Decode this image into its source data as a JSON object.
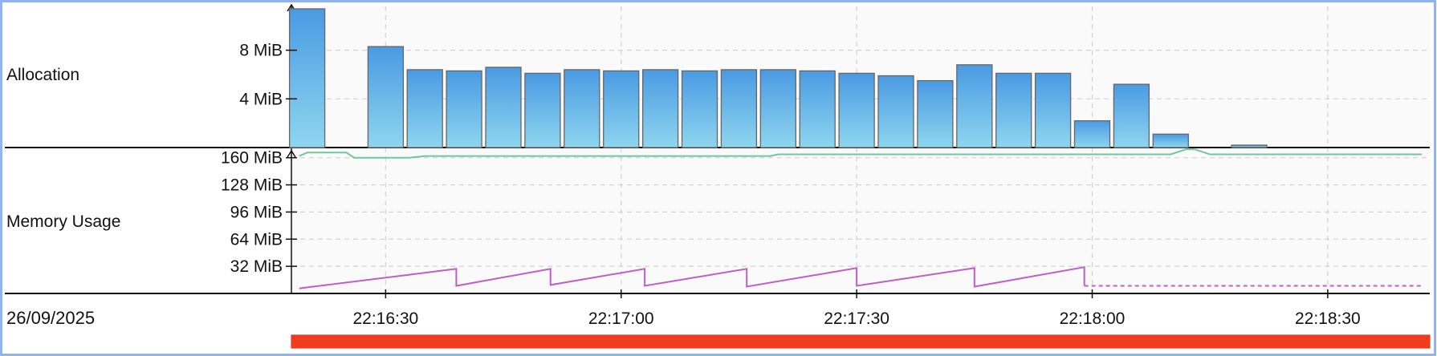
{
  "labels": {
    "allocation": "Allocation",
    "memory_usage": "Memory Usage",
    "date": "26/09/2025"
  },
  "colors": {
    "border": "#8fb4f0",
    "grid": "#d2d2d2",
    "bar_top": "#4a9ae3",
    "bar_bottom": "#8ed6ef",
    "bar_stroke": "#666666",
    "committed_line": "#6fc79b",
    "used_line": "#c05dc8",
    "progress": "#f03c1c"
  },
  "chart_data": [
    {
      "type": "bar",
      "name": "allocation",
      "y_unit": "MiB",
      "ylim": [
        0,
        11.6
      ],
      "y_ticks": [
        {
          "value": 4,
          "label": "4 MiB"
        },
        {
          "value": 8,
          "label": "8 MiB"
        }
      ],
      "x_times": [
        "22:16:20",
        "22:16:25",
        "22:16:30",
        "22:16:35",
        "22:16:40",
        "22:16:45",
        "22:16:50",
        "22:16:55",
        "22:17:00",
        "22:17:05",
        "22:17:10",
        "22:17:15",
        "22:17:20",
        "22:17:25",
        "22:17:30",
        "22:17:35",
        "22:17:40",
        "22:17:45",
        "22:17:50",
        "22:17:55",
        "22:18:00",
        "22:18:05",
        "22:18:10",
        "22:18:15",
        "22:18:20",
        "22:18:25"
      ],
      "values": [
        11.4,
        0,
        8.3,
        6.4,
        6.3,
        6.6,
        6.1,
        6.4,
        6.3,
        6.4,
        6.3,
        6.4,
        6.4,
        6.3,
        6.1,
        5.9,
        5.5,
        6.8,
        6.1,
        6.1,
        2.2,
        5.2,
        1.1,
        0,
        0.2,
        0
      ],
      "grid": true
    },
    {
      "type": "line",
      "name": "memory_usage",
      "y_unit": "MiB",
      "ylim": [
        0,
        172
      ],
      "y_ticks": [
        {
          "value": 32,
          "label": "32 MiB"
        },
        {
          "value": 64,
          "label": "64 MiB"
        },
        {
          "value": 96,
          "label": "96 MiB"
        },
        {
          "value": 128,
          "label": "128 MiB"
        },
        {
          "value": 160,
          "label": "160 MiB"
        }
      ],
      "x_ticks": [
        "22:16:30",
        "22:17:00",
        "22:17:30",
        "22:18:00",
        "22:18:30"
      ],
      "series": [
        {
          "color_key": "committed_line",
          "points": [
            [
              "22:16:19",
              162
            ],
            [
              "22:16:20",
              166
            ],
            [
              "22:16:25",
              166
            ],
            [
              "22:16:26",
              160
            ],
            [
              "22:16:33",
              160
            ],
            [
              "22:16:35",
              162
            ],
            [
              "22:16:36",
              162
            ],
            [
              "22:17:19",
              162
            ],
            [
              "22:17:20",
              164
            ],
            [
              "22:18:10",
              164
            ],
            [
              "22:18:12",
              170
            ],
            [
              "22:18:13",
              170
            ],
            [
              "22:18:15",
              164
            ],
            [
              "22:18:42",
              164
            ]
          ]
        },
        {
          "color_key": "used_line",
          "points": [
            [
              "22:16:19",
              6
            ],
            [
              "22:16:39",
              29
            ],
            [
              "22:16:39",
              9
            ],
            [
              "22:16:51",
              29
            ],
            [
              "22:16:51",
              10
            ],
            [
              "22:17:03",
              29
            ],
            [
              "22:17:03",
              9
            ],
            [
              "22:17:16",
              29
            ],
            [
              "22:17:16",
              8
            ],
            [
              "22:17:30",
              30
            ],
            [
              "22:17:30",
              9
            ],
            [
              "22:17:45",
              30
            ],
            [
              "22:17:45",
              8
            ],
            [
              "22:17:59",
              31
            ],
            [
              "22:17:59",
              9
            ]
          ]
        },
        {
          "color_key": "used_line",
          "dashed": true,
          "points": [
            [
              "22:17:59",
              9
            ],
            [
              "22:18:42",
              9
            ]
          ]
        }
      ],
      "grid": true
    }
  ],
  "time_axis": {
    "start": "22:16:18",
    "end": "22:18:43"
  },
  "progress_bar": {
    "fraction": 1.0
  }
}
